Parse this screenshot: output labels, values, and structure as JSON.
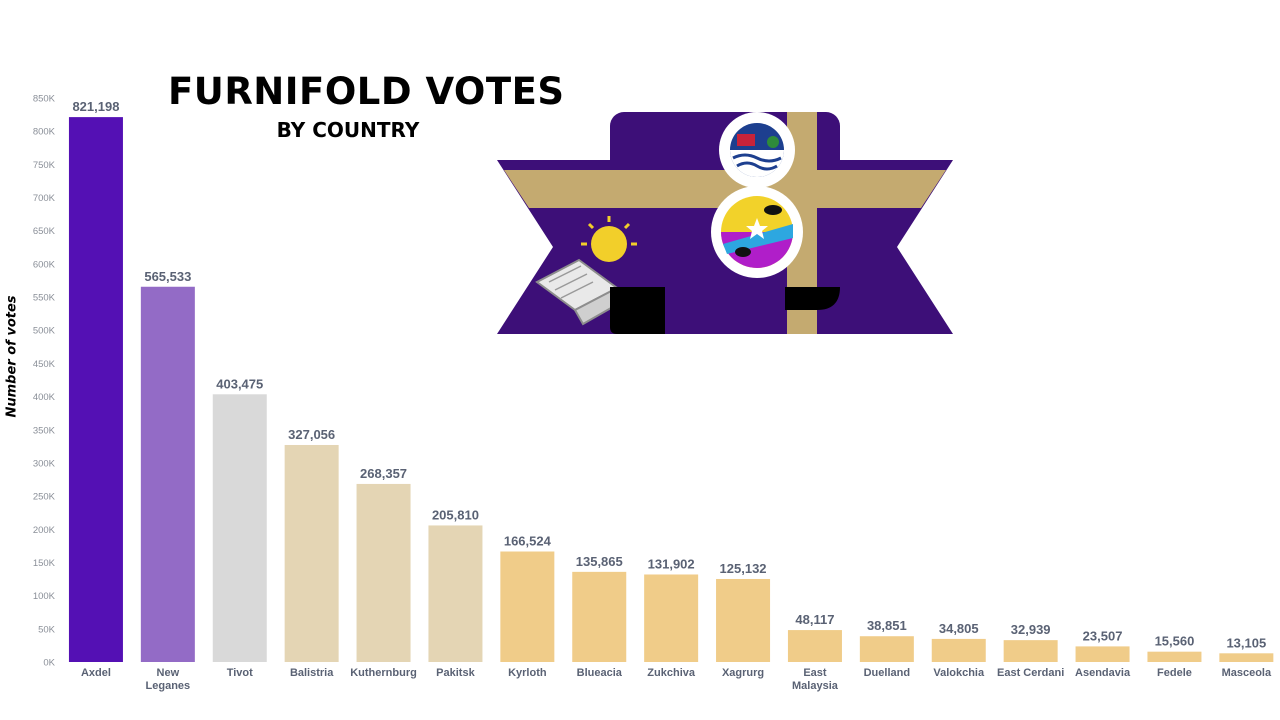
{
  "chart_data": {
    "type": "bar",
    "title": "FURNIFOLD VOTES",
    "subtitle": "BY COUNTRY",
    "xlabel": "",
    "ylabel": "Number of votes",
    "ylim": [
      0,
      850000
    ],
    "yticks": [
      0,
      50000,
      100000,
      150000,
      200000,
      250000,
      300000,
      350000,
      400000,
      450000,
      500000,
      550000,
      600000,
      650000,
      700000,
      750000,
      800000,
      850000
    ],
    "ytick_labels": [
      "0K",
      "50K",
      "100K",
      "150K",
      "200K",
      "250K",
      "300K",
      "350K",
      "400K",
      "450K",
      "500K",
      "550K",
      "600K",
      "650K",
      "700K",
      "750K",
      "800K",
      "850K"
    ],
    "grid": false,
    "categories": [
      "Axdel",
      "New Leganes",
      "Tivot",
      "Balistria",
      "Kuthernburg",
      "Pakitsk",
      "Kyrloth",
      "Blueacia",
      "Zukchiva",
      "Xagrurg",
      "East Malaysia",
      "Duelland",
      "Valokchia",
      "East Cerdani",
      "Asendavia",
      "Fedele",
      "Masceola"
    ],
    "category_lines": [
      [
        "Axdel"
      ],
      [
        "New",
        "Leganes"
      ],
      [
        "Tivot"
      ],
      [
        "Balistria"
      ],
      [
        "Kuthernburg"
      ],
      [
        "Pakitsk"
      ],
      [
        "Kyrloth"
      ],
      [
        "Blueacia"
      ],
      [
        "Zukchiva"
      ],
      [
        "Xagrurg"
      ],
      [
        "East",
        "Malaysia"
      ],
      [
        "Duelland"
      ],
      [
        "Valokchia"
      ],
      [
        "East Cerdani"
      ],
      [
        "Asendavia"
      ],
      [
        "Fedele"
      ],
      [
        "Masceola"
      ]
    ],
    "values": [
      821198,
      565533,
      403475,
      327056,
      268357,
      205810,
      166524,
      135865,
      131902,
      125132,
      48117,
      38851,
      34805,
      32939,
      23507,
      15560,
      13105
    ],
    "value_labels": [
      "821,198",
      "565,533",
      "403,475",
      "327,056",
      "268,357",
      "205,810",
      "166,524",
      "135,865",
      "131,902",
      "125,132",
      "48,117",
      "38,851",
      "34,805",
      "32,939",
      "23,507",
      "15,560",
      "13,105"
    ],
    "bar_colors": [
      "#5410b4",
      "#936bc6",
      "#d9d9d9",
      "#e4d5b4",
      "#e4d5b4",
      "#e4d5b4",
      "#f0cc89",
      "#f0cc89",
      "#f0cc89",
      "#f0cc89",
      "#f0cc89",
      "#f0cc89",
      "#f0cc89",
      "#f0cc89",
      "#f0cc89",
      "#f0cc89",
      "#f0cc89"
    ],
    "label_color": "#5a6274",
    "tick_color": "#8a8f98"
  },
  "emblem": {
    "purple": "#3d0f78",
    "gold": "#c4aa70",
    "number": "8"
  }
}
